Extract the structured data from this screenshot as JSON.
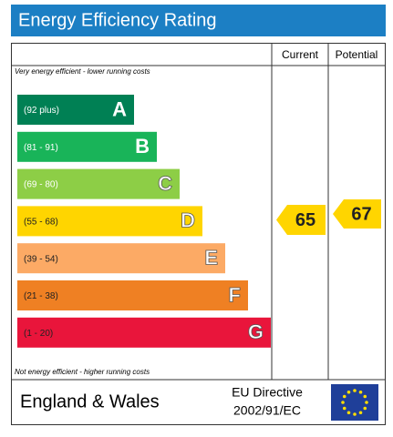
{
  "chart_data": {
    "type": "epc",
    "title": "Energy Efficiency Rating",
    "columns": [
      "Current",
      "Potential"
    ],
    "top_note": "Very energy efficient - lower running costs",
    "bottom_note": "Not energy efficient - higher running costs",
    "bands": [
      {
        "range": "(92 plus)",
        "letter": "A",
        "color": "#008054"
      },
      {
        "range": "(81 - 91)",
        "letter": "B",
        "color": "#19b459"
      },
      {
        "range": "(69 - 80)",
        "letter": "C",
        "color": "#8dce46"
      },
      {
        "range": "(55 - 68)",
        "letter": "D",
        "color": "#ffd500"
      },
      {
        "range": "(39 - 54)",
        "letter": "E",
        "color": "#fcaa65"
      },
      {
        "range": "(21 - 38)",
        "letter": "F",
        "color": "#ef8023"
      },
      {
        "range": "(1 - 20)",
        "letter": "G",
        "color": "#e9153b"
      }
    ],
    "current": 65,
    "potential": 67,
    "arrow_color": "#ffd500",
    "region": "England & Wales",
    "directive": [
      "EU Directive",
      "2002/91/EC"
    ]
  }
}
